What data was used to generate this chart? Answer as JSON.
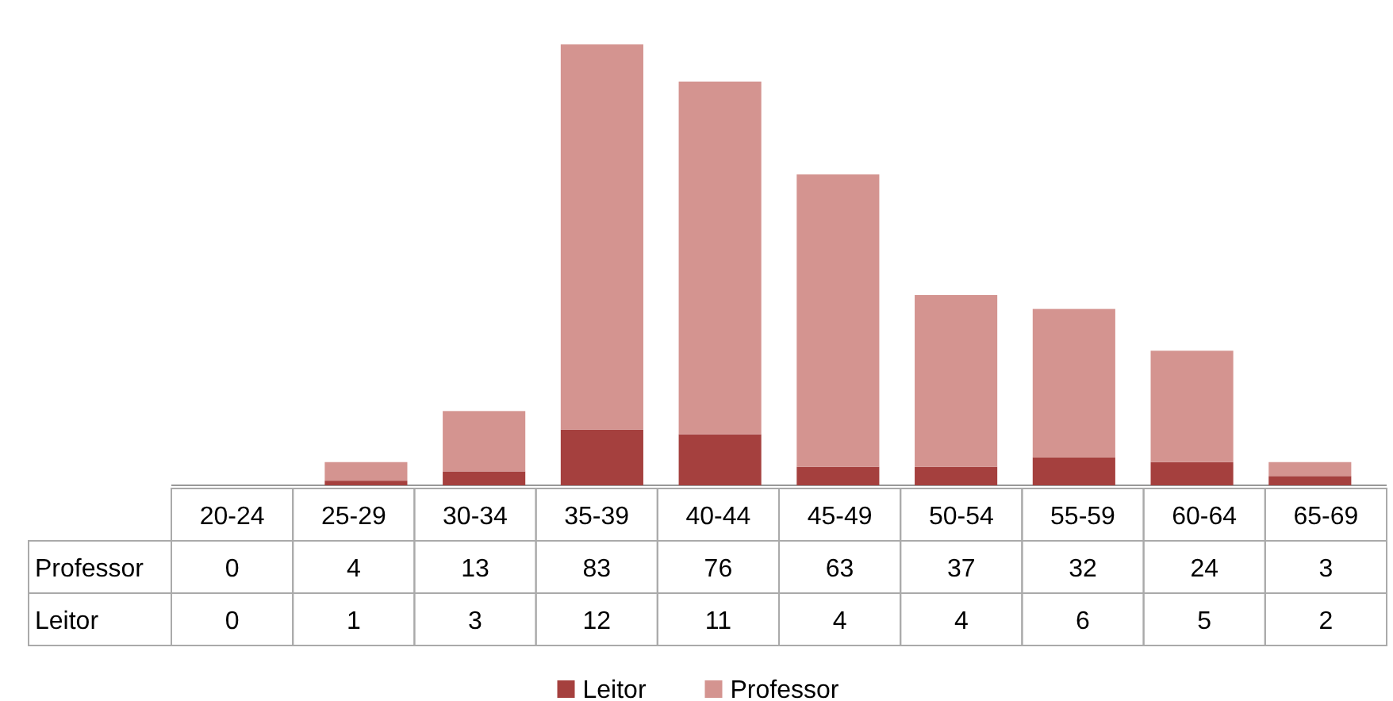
{
  "chart_data": {
    "type": "bar",
    "stacked": true,
    "data_labels": true,
    "legend": "bottom",
    "categories": [
      "20-24",
      "25-29",
      "30-34",
      "35-39",
      "40-44",
      "45-49",
      "50-54",
      "55-59",
      "60-64",
      "65-69"
    ],
    "series": [
      {
        "name": "Leitor",
        "color": "#a5403e",
        "values": [
          0,
          1,
          3,
          12,
          11,
          4,
          4,
          6,
          5,
          2
        ]
      },
      {
        "name": "Professor",
        "color": "#d49490",
        "values": [
          0,
          4,
          13,
          83,
          76,
          63,
          37,
          32,
          24,
          3
        ]
      }
    ]
  }
}
